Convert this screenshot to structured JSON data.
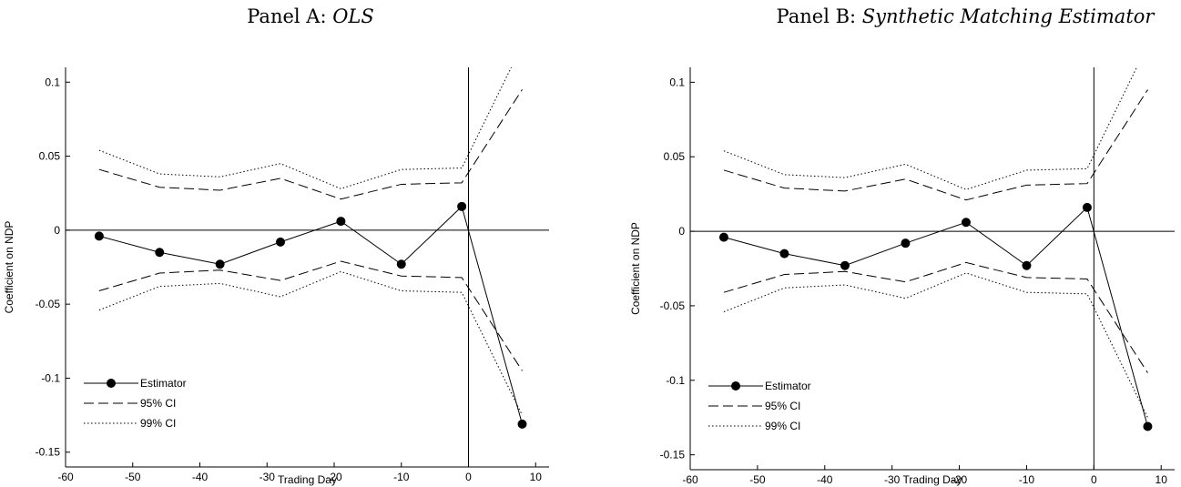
{
  "panels": [
    {
      "prefix": "Panel A: ",
      "name": "OLS"
    },
    {
      "prefix": "Panel B: ",
      "name": "Synthetic Matching Estimator"
    }
  ],
  "chart_data": [
    {
      "type": "line",
      "title": "Panel A: OLS",
      "xlabel": "Trading Day",
      "ylabel": "Coefficient on NDP",
      "xlim": [
        -60,
        12
      ],
      "ylim": [
        -0.16,
        0.11
      ],
      "xticks": [
        -60,
        -50,
        -40,
        -30,
        -20,
        -10,
        0,
        10
      ],
      "yticks": [
        -0.15,
        -0.1,
        -0.05,
        0,
        0.05,
        0.1
      ],
      "legend_position": "bottom-left",
      "reference_lines": {
        "x": 0,
        "y": 0
      },
      "x": [
        -55,
        -46,
        -37,
        -28,
        -19,
        -10,
        -1,
        8
      ],
      "series": [
        {
          "name": "Estimator",
          "style": "solid-markers",
          "values": [
            -0.004,
            -0.015,
            -0.023,
            -0.008,
            0.006,
            -0.023,
            0.016,
            -0.131
          ]
        },
        {
          "name": "95% CI",
          "style": "dashed",
          "upper": [
            0.041,
            0.029,
            0.027,
            0.035,
            0.021,
            0.031,
            0.032,
            0.095
          ],
          "lower": [
            -0.041,
            -0.029,
            -0.027,
            -0.034,
            -0.021,
            -0.031,
            -0.032,
            -0.095
          ]
        },
        {
          "name": "99% CI",
          "style": "dotted",
          "upper": [
            0.054,
            0.038,
            0.036,
            0.045,
            0.028,
            0.041,
            0.042,
            0.125
          ],
          "lower": [
            -0.054,
            -0.038,
            -0.036,
            -0.045,
            -0.028,
            -0.041,
            -0.042,
            -0.125
          ]
        }
      ]
    },
    {
      "type": "line",
      "title": "Panel B: Synthetic Matching Estimator",
      "xlabel": "Trading Day",
      "ylabel": "Coefficient on NDP",
      "xlim": [
        -60,
        12
      ],
      "ylim": [
        -0.16,
        0.11
      ],
      "xticks": [
        -60,
        -50,
        -40,
        -30,
        -20,
        -10,
        0,
        10
      ],
      "yticks": [
        -0.15,
        -0.1,
        -0.05,
        0,
        0.05,
        0.1
      ],
      "legend_position": "bottom-left",
      "reference_lines": {
        "x": 0,
        "y": 0
      },
      "x": [
        -55,
        -46,
        -37,
        -28,
        -19,
        -10,
        -1,
        8
      ],
      "series": [
        {
          "name": "Estimator",
          "style": "solid-markers",
          "values": [
            -0.004,
            -0.015,
            -0.023,
            -0.008,
            0.006,
            -0.023,
            0.016,
            -0.131
          ]
        },
        {
          "name": "95% CI",
          "style": "dashed",
          "upper": [
            0.041,
            0.029,
            0.027,
            0.035,
            0.021,
            0.031,
            0.032,
            0.095
          ],
          "lower": [
            -0.041,
            -0.029,
            -0.027,
            -0.034,
            -0.021,
            -0.031,
            -0.032,
            -0.095
          ]
        },
        {
          "name": "99% CI",
          "style": "dotted",
          "upper": [
            0.054,
            0.038,
            0.036,
            0.045,
            0.028,
            0.041,
            0.042,
            0.125
          ],
          "lower": [
            -0.054,
            -0.038,
            -0.036,
            -0.045,
            -0.028,
            -0.041,
            -0.042,
            -0.125
          ]
        }
      ]
    }
  ]
}
